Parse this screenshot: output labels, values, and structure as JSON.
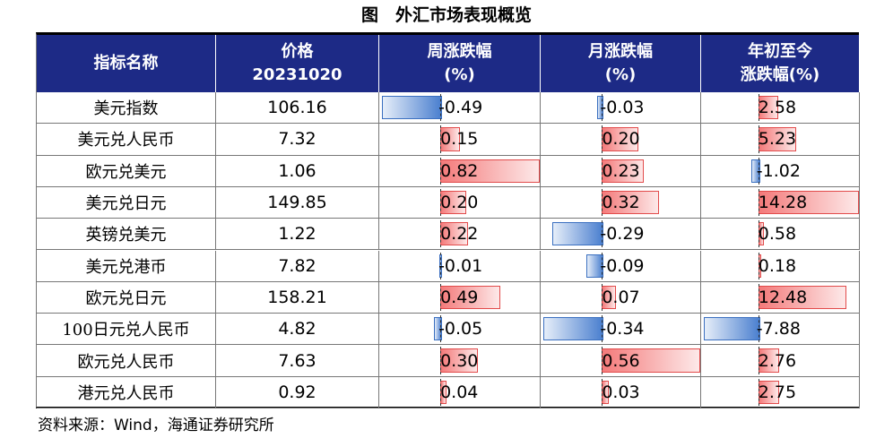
{
  "title": "图　外汇市场表现概览",
  "table": {
    "header": [
      [
        "指标名称"
      ],
      [
        "价格",
        "20231020"
      ],
      [
        "周涨跌幅",
        "(%)"
      ],
      [
        "月涨跌幅",
        "(%)"
      ],
      [
        "年初至今",
        "涨跌幅(%)"
      ]
    ],
    "rows": [
      [
        "美元指数",
        "106.16",
        "-0.49",
        "-0.03",
        "2.58"
      ],
      [
        "美元兑人民币",
        "7.32",
        "0.15",
        "0.20",
        "5.23"
      ],
      [
        "欧元兑美元",
        "1.06",
        "0.82",
        "0.23",
        "-1.02"
      ],
      [
        "美元兑日元",
        "149.85",
        "0.20",
        "0.32",
        "14.28"
      ],
      [
        "英镑兑美元",
        "1.22",
        "0.22",
        "-0.29",
        "0.58"
      ],
      [
        "美元兑港币",
        "7.82",
        "-0.01",
        "-0.09",
        "0.18"
      ],
      [
        "欧元兑日元",
        "158.21",
        "0.49",
        "0.07",
        "12.48"
      ],
      [
        "100日元兑人民币",
        "4.82",
        "-0.05",
        "-0.34",
        "-7.88"
      ],
      [
        "欧元兑人民币",
        "7.63",
        "0.30",
        "0.56",
        "2.76"
      ],
      [
        "港元兑人民币",
        "0.92",
        "0.04",
        "0.03",
        "2.75"
      ]
    ]
  },
  "source": "资料来源：Wind，海通证券研究所"
}
